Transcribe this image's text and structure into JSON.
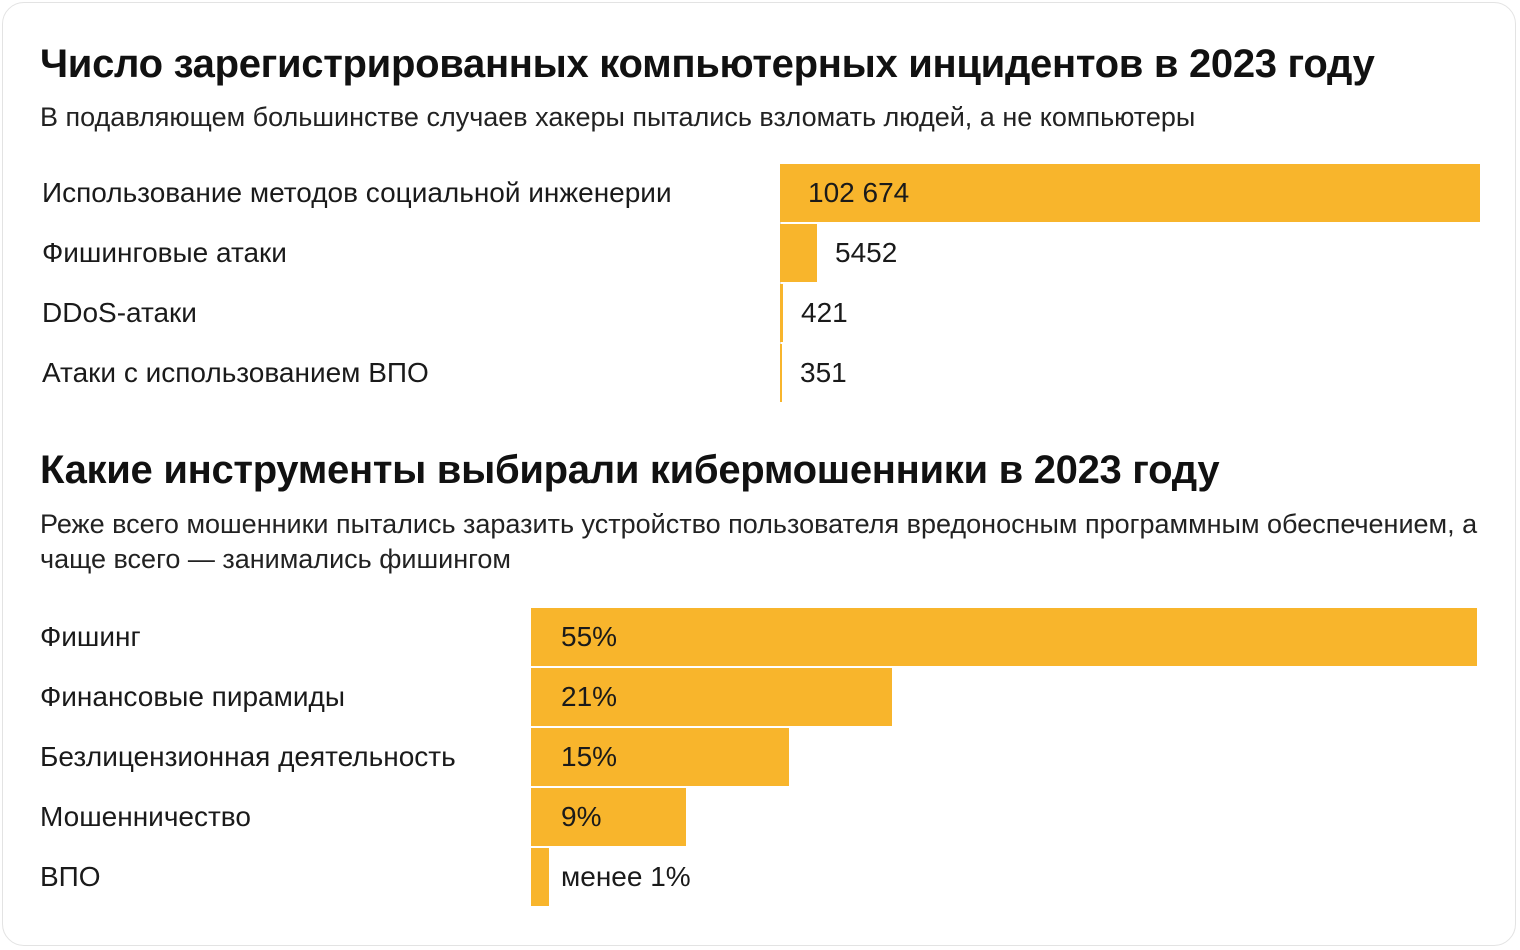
{
  "colors": {
    "bar": "#f8b52c",
    "text": "#1a1a1a",
    "background": "#ffffff"
  },
  "chart_data": [
    {
      "type": "bar",
      "orientation": "horizontal",
      "title": "Число зарегистрированных компьютерных инцидентов в 2023 году",
      "subtitle": "В подавляющем большинстве случаев хакеры пытались взломать людей, а не компьютеры",
      "categories": [
        "Использование методов социальной инженерии",
        "Фишинговые атаки",
        "DDoS-атаки",
        "Атаки с использованием ВПО"
      ],
      "values": [
        102674,
        5452,
        421,
        351
      ],
      "value_labels": [
        "102 674",
        "5452",
        "421",
        "351"
      ],
      "xlim": [
        0,
        102674
      ],
      "grid": false,
      "legend": "none"
    },
    {
      "type": "bar",
      "orientation": "horizontal",
      "title": "Какие инструменты выбирали кибермошенники в 2023 году",
      "subtitle": "Реже всего мошенники пытались заразить устройство пользователя вредоносным программным обеспечением, а чаще всего — занимались фишингом",
      "categories": [
        "Фишинг",
        "Финансовые пирамиды",
        "Безлицензионная деятельность",
        "Мошенничество",
        "ВПО"
      ],
      "values": [
        55,
        21,
        15,
        9,
        1
      ],
      "value_labels": [
        "55%",
        "21%",
        "15%",
        "9%",
        "менее 1%"
      ],
      "unit": "%",
      "xlim": [
        0,
        55
      ],
      "grid": false,
      "legend": "none"
    }
  ]
}
